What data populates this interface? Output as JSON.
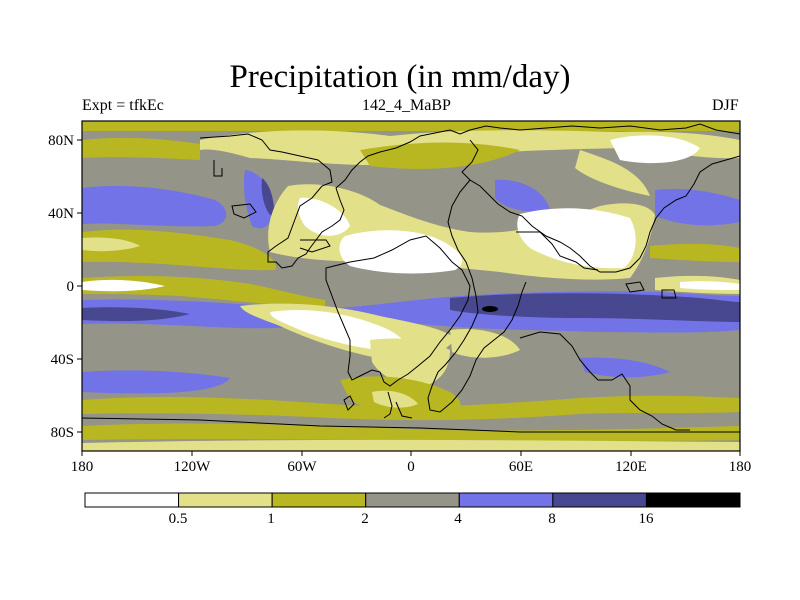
{
  "title": "Precipitation (in mm/day)",
  "left_string": "Expt = tfkEc",
  "center_string": "142_4_MaBP",
  "right_string": "DJF",
  "map": {
    "projection": "cylindrical-equidistant",
    "lon_ticks": [
      "180",
      "120W",
      "60W",
      "0",
      "60E",
      "120E",
      "180"
    ],
    "lat_ticks": [
      "80N",
      "40N",
      "0",
      "40S",
      "80S"
    ],
    "overlay": "continent outlines"
  },
  "colorbar": {
    "levels": [
      "0.5",
      "1",
      "2",
      "4",
      "8",
      "16"
    ],
    "colors": [
      "#ffffff",
      "#e3e08a",
      "#b8b722",
      "#949488",
      "#7373e8",
      "#484890",
      "#000000"
    ]
  }
}
